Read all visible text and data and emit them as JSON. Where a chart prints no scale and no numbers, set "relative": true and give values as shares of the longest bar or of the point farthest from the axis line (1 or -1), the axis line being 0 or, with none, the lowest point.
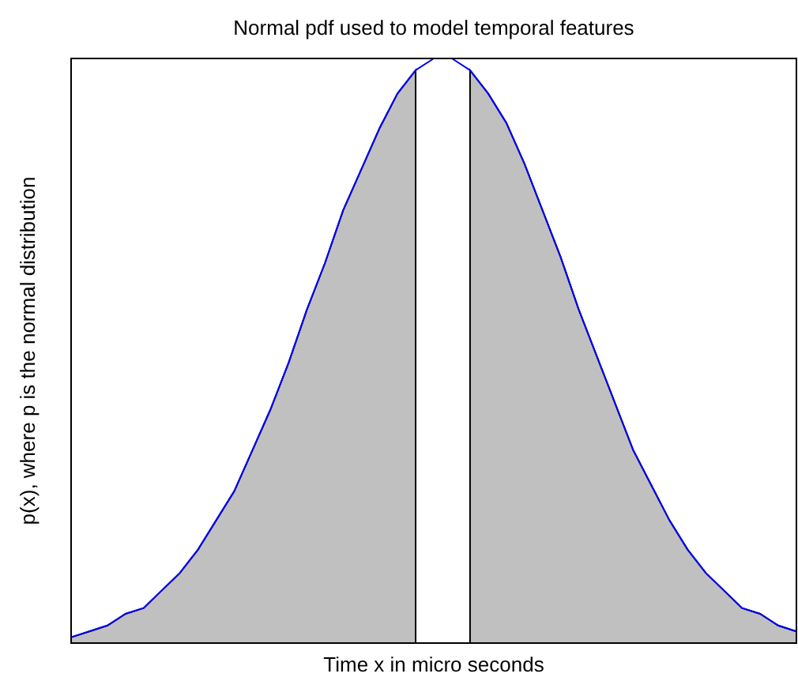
{
  "chart_data": {
    "type": "area",
    "title": "Normal pdf used to model temporal features",
    "xlabel": "Time x in micro seconds",
    "ylabel": "p(x), where p is the normal distribution",
    "relative": true,
    "categories": [
      null,
      null,
      null,
      null,
      null,
      null,
      null,
      null,
      null,
      null,
      null,
      null,
      null,
      null,
      null,
      null,
      null,
      null,
      null,
      null,
      null,
      null,
      null,
      null,
      null,
      null,
      null,
      null,
      null,
      null,
      null,
      null,
      null,
      null,
      null,
      null,
      null,
      null,
      null,
      null,
      null
    ],
    "series": [
      {
        "type": "area",
        "color": "#c0c0c0",
        "values": [
          0.01,
          0.02,
          0.03,
          0.05,
          0.06,
          0.09,
          0.12,
          0.16,
          0.21,
          0.26,
          0.33,
          0.4,
          0.48,
          0.57,
          0.65,
          0.74,
          0.81,
          0.88,
          0.94,
          0.98,
          null,
          null,
          0.98,
          0.94,
          0.89,
          0.82,
          0.74,
          0.66,
          0.57,
          0.49,
          0.41,
          0.33,
          0.27,
          0.21,
          0.16,
          0.12,
          0.09,
          0.06,
          0.05,
          0.03,
          0.02
        ]
      },
      {
        "type": "line",
        "color": "#0000ff",
        "values": [
          0.01,
          0.02,
          0.03,
          0.05,
          0.06,
          0.09,
          0.12,
          0.16,
          0.21,
          0.26,
          0.33,
          0.4,
          0.48,
          0.57,
          0.65,
          0.74,
          0.81,
          0.88,
          0.94,
          0.98,
          1,
          1,
          0.98,
          0.94,
          0.89,
          0.82,
          0.74,
          0.66,
          0.57,
          0.49,
          0.41,
          0.33,
          0.27,
          0.21,
          0.16,
          0.12,
          0.09,
          0.06,
          0.05,
          0.03,
          0.02
        ]
      }
    ]
  }
}
